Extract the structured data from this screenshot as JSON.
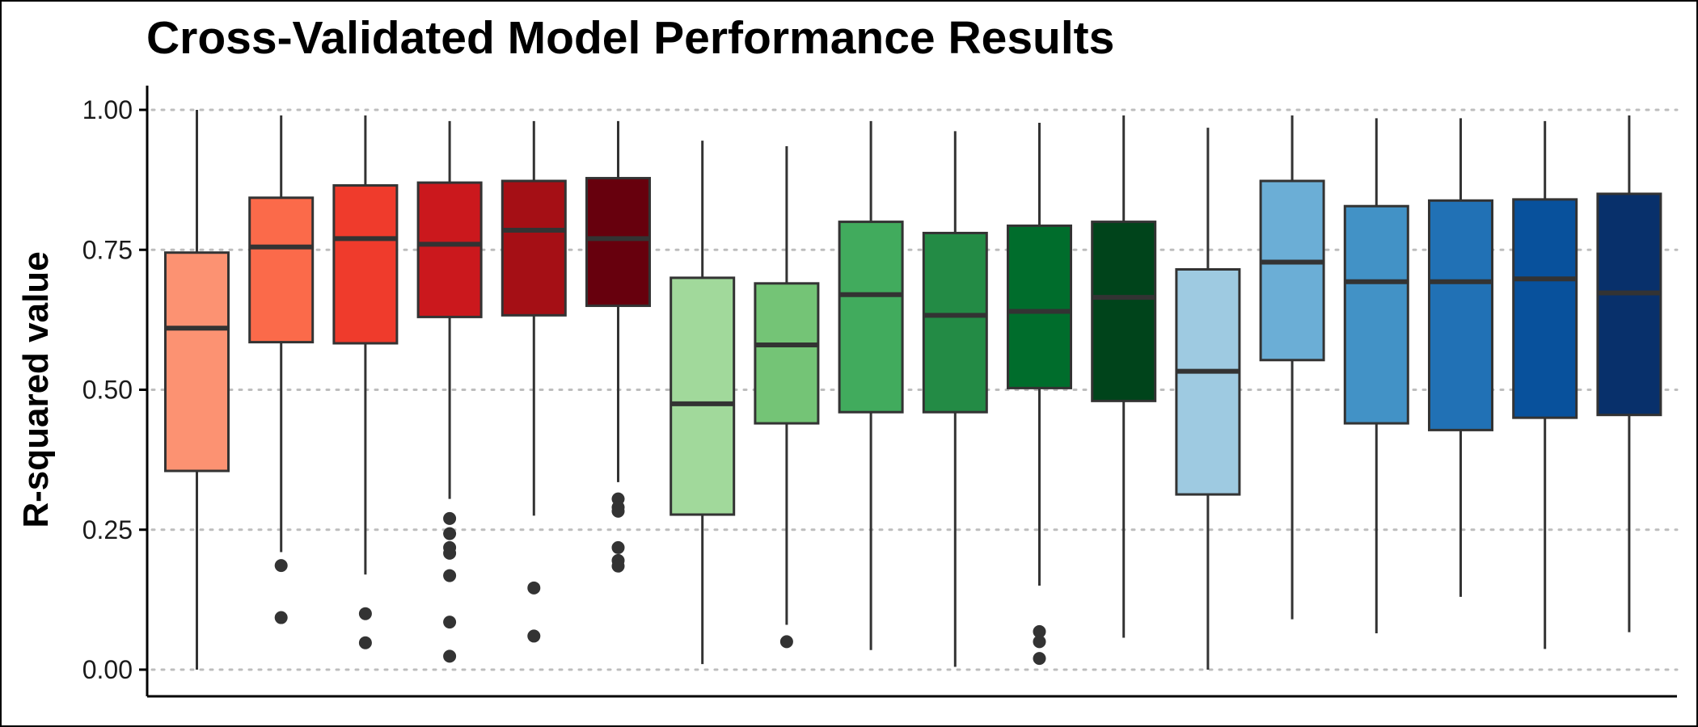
{
  "chart_data": {
    "type": "boxplot",
    "title": "Cross-Validated Model Performance Results",
    "xlabel": "",
    "ylabel": "R-squared value",
    "ylim": [
      0,
      1
    ],
    "yticks": [
      "0.00",
      "0.25",
      "0.50",
      "0.75",
      "1.00"
    ],
    "grid": "horizontal dotted",
    "legend": "none",
    "boxes": [
      {
        "color": "#FC9272",
        "min": 0.0,
        "q1": 0.355,
        "median": 0.61,
        "q3": 0.745,
        "max": 1.0,
        "outliers": []
      },
      {
        "color": "#FB6A4A",
        "min": 0.21,
        "q1": 0.585,
        "median": 0.755,
        "q3": 0.843,
        "max": 0.99,
        "outliers": [
          0.186,
          0.093
        ]
      },
      {
        "color": "#EF3B2C",
        "min": 0.17,
        "q1": 0.583,
        "median": 0.77,
        "q3": 0.865,
        "max": 0.99,
        "outliers": [
          0.1,
          0.048
        ]
      },
      {
        "color": "#CB181D",
        "min": 0.305,
        "q1": 0.63,
        "median": 0.76,
        "q3": 0.87,
        "max": 0.98,
        "outliers": [
          0.27,
          0.243,
          0.218,
          0.208,
          0.168,
          0.085,
          0.024
        ]
      },
      {
        "color": "#A50F15",
        "min": 0.275,
        "q1": 0.633,
        "median": 0.785,
        "q3": 0.873,
        "max": 0.98,
        "outliers": [
          0.146,
          0.06
        ]
      },
      {
        "color": "#67000D",
        "min": 0.335,
        "q1": 0.65,
        "median": 0.77,
        "q3": 0.878,
        "max": 0.98,
        "outliers": [
          0.305,
          0.29,
          0.283,
          0.218,
          0.195,
          0.185
        ]
      },
      {
        "color": "#A1D99B",
        "min": 0.01,
        "q1": 0.277,
        "median": 0.475,
        "q3": 0.7,
        "max": 0.945,
        "outliers": []
      },
      {
        "color": "#74C476",
        "min": 0.08,
        "q1": 0.44,
        "median": 0.58,
        "q3": 0.69,
        "max": 0.935,
        "outliers": [
          0.05
        ]
      },
      {
        "color": "#41AB5D",
        "min": 0.035,
        "q1": 0.46,
        "median": 0.67,
        "q3": 0.8,
        "max": 0.98,
        "outliers": []
      },
      {
        "color": "#238B45",
        "min": 0.005,
        "q1": 0.46,
        "median": 0.633,
        "q3": 0.78,
        "max": 0.962,
        "outliers": []
      },
      {
        "color": "#006D2C",
        "min": 0.15,
        "q1": 0.503,
        "median": 0.64,
        "q3": 0.793,
        "max": 0.977,
        "outliers": [
          0.068,
          0.05,
          0.02
        ]
      },
      {
        "color": "#00441B",
        "min": 0.057,
        "q1": 0.48,
        "median": 0.665,
        "q3": 0.8,
        "max": 0.99,
        "outliers": []
      },
      {
        "color": "#9ECAE1",
        "min": 0.0,
        "q1": 0.313,
        "median": 0.533,
        "q3": 0.715,
        "max": 0.968,
        "outliers": []
      },
      {
        "color": "#6BAED6",
        "min": 0.09,
        "q1": 0.553,
        "median": 0.728,
        "q3": 0.873,
        "max": 0.99,
        "outliers": []
      },
      {
        "color": "#4292C6",
        "min": 0.065,
        "q1": 0.44,
        "median": 0.693,
        "q3": 0.828,
        "max": 0.985,
        "outliers": []
      },
      {
        "color": "#2171B5",
        "min": 0.13,
        "q1": 0.428,
        "median": 0.693,
        "q3": 0.838,
        "max": 0.985,
        "outliers": []
      },
      {
        "color": "#08519C",
        "min": 0.037,
        "q1": 0.45,
        "median": 0.698,
        "q3": 0.84,
        "max": 0.98,
        "outliers": []
      },
      {
        "color": "#08306B",
        "min": 0.067,
        "q1": 0.455,
        "median": 0.673,
        "q3": 0.85,
        "max": 0.99,
        "outliers": []
      }
    ]
  }
}
